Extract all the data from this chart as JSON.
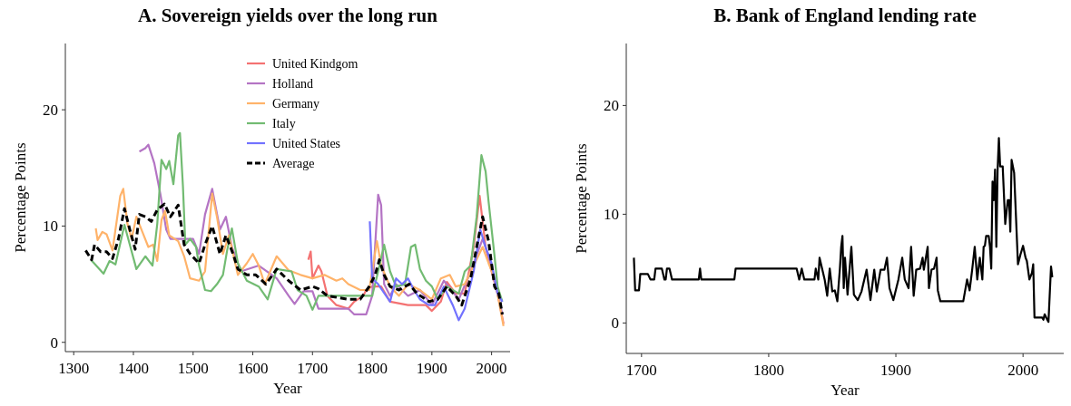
{
  "chart_data": [
    {
      "type": "line",
      "title": "A. Sovereign yields over the long run",
      "xlabel": "Year",
      "ylabel": "Percentage Points",
      "xlim": [
        1286,
        2031
      ],
      "ylim": [
        -0.8,
        25.7
      ],
      "xticks": [
        1300,
        1400,
        1500,
        1600,
        1700,
        1800,
        1900,
        2000
      ],
      "yticks": [
        0,
        10,
        20
      ],
      "legend": "top",
      "series": [
        {
          "name": "United Kindgom",
          "color": "#f47272",
          "x": [
            1693,
            1697,
            1700,
            1710,
            1715,
            1725,
            1740,
            1760,
            1770,
            1785,
            1790,
            1800,
            1815,
            1830,
            1860,
            1890,
            1900,
            1915,
            1925,
            1940,
            1955,
            1970,
            1980,
            1990,
            2000,
            2010,
            2020
          ],
          "values": [
            7.1,
            7.8,
            5.5,
            6.6,
            6.1,
            4.0,
            3.2,
            2.9,
            3.5,
            4.0,
            4.5,
            4.8,
            4.8,
            3.5,
            3.2,
            3.2,
            2.7,
            3.5,
            5.2,
            4.2,
            4.2,
            8.2,
            12.6,
            8.2,
            6.1,
            4.2,
            1.6
          ]
        },
        {
          "name": "Holland",
          "color": "#b474c4",
          "x": [
            1410,
            1420,
            1425,
            1435,
            1445,
            1455,
            1462,
            1490,
            1500,
            1510,
            1520,
            1532,
            1545,
            1555,
            1565,
            1580,
            1610,
            1640,
            1660,
            1670,
            1685,
            1700,
            1710,
            1760,
            1770,
            1790,
            1800,
            1810,
            1815,
            1820,
            1830,
            1840,
            1860,
            1880,
            1900,
            1920,
            1945,
            1965,
            1985,
            1995,
            2010,
            2018
          ],
          "values": [
            16.4,
            16.7,
            17.0,
            15.4,
            12.8,
            9.7,
            8.9,
            8.9,
            8.9,
            7.6,
            11.0,
            13.2,
            9.7,
            10.8,
            8.2,
            6.1,
            6.6,
            5.5,
            4.0,
            3.3,
            4.4,
            4.4,
            2.9,
            2.9,
            2.4,
            2.4,
            4.0,
            12.7,
            11.8,
            5.0,
            4.0,
            5.0,
            4.0,
            4.5,
            3.2,
            5.3,
            3.7,
            6.1,
            8.9,
            7.4,
            4.2,
            2.4
          ]
        },
        {
          "name": "Germany",
          "color": "#ffb36a",
          "x": [
            1337,
            1340,
            1348,
            1355,
            1365,
            1378,
            1383,
            1390,
            1397,
            1405,
            1415,
            1425,
            1433,
            1440,
            1447,
            1453,
            1460,
            1475,
            1485,
            1495,
            1510,
            1520,
            1532,
            1540,
            1550,
            1560,
            1575,
            1590,
            1600,
            1610,
            1620,
            1640,
            1660,
            1680,
            1700,
            1720,
            1740,
            1750,
            1760,
            1780,
            1795,
            1808,
            1815,
            1830,
            1845,
            1860,
            1880,
            1900,
            1915,
            1930,
            1940,
            1955,
            1970,
            1985,
            1995,
            2005,
            2020
          ],
          "values": [
            9.8,
            8.8,
            9.5,
            9.3,
            7.9,
            12.6,
            13.2,
            10.2,
            8.9,
            10.8,
            9.5,
            8.2,
            8.4,
            7.0,
            10.5,
            11.3,
            9.2,
            8.7,
            7.4,
            5.5,
            5.3,
            6.1,
            12.8,
            10.8,
            7.6,
            9.2,
            5.8,
            6.8,
            7.6,
            6.6,
            5.0,
            7.4,
            6.2,
            5.8,
            5.5,
            5.8,
            5.3,
            5.5,
            5.0,
            4.5,
            4.5,
            8.7,
            6.6,
            4.8,
            4.0,
            5.0,
            4.5,
            3.7,
            5.5,
            5.8,
            4.8,
            5.0,
            6.6,
            8.2,
            6.8,
            5.5,
            1.4
          ]
        },
        {
          "name": "Italy",
          "color": "#72bb72",
          "x": [
            1329,
            1350,
            1360,
            1370,
            1385,
            1395,
            1405,
            1420,
            1432,
            1440,
            1447,
            1455,
            1460,
            1467,
            1475,
            1478,
            1483,
            1487,
            1495,
            1505,
            1510,
            1520,
            1530,
            1540,
            1550,
            1557,
            1565,
            1575,
            1590,
            1610,
            1625,
            1640,
            1665,
            1675,
            1690,
            1700,
            1710,
            1800,
            1810,
            1820,
            1830,
            1840,
            1855,
            1865,
            1872,
            1880,
            1890,
            1900,
            1910,
            1925,
            1945,
            1955,
            1965,
            1975,
            1983,
            1990,
            1995,
            2005,
            2010,
            2018
          ],
          "values": [
            7.1,
            5.9,
            7.0,
            6.7,
            10.1,
            8.2,
            6.3,
            7.4,
            6.6,
            10.2,
            15.7,
            14.9,
            15.6,
            13.6,
            17.8,
            18.0,
            13.4,
            8.4,
            8.9,
            8.2,
            6.6,
            4.5,
            4.4,
            5.0,
            5.8,
            7.9,
            9.8,
            6.8,
            5.3,
            4.8,
            3.7,
            6.3,
            6.1,
            4.5,
            4.0,
            2.8,
            4.0,
            4.0,
            6.1,
            8.4,
            6.1,
            4.8,
            5.0,
            8.2,
            8.4,
            6.3,
            5.3,
            4.8,
            3.7,
            4.8,
            4.2,
            6.1,
            6.6,
            10.8,
            16.1,
            14.7,
            12.1,
            7.4,
            4.8,
            3.5
          ]
        },
        {
          "name": "United States",
          "color": "#7272ff",
          "x": [
            1796,
            1800,
            1810,
            1830,
            1840,
            1850,
            1860,
            1870,
            1880,
            1895,
            1905,
            1920,
            1935,
            1945,
            1955,
            1970,
            1981,
            1990,
            2000,
            2010,
            2018
          ],
          "values": [
            10.4,
            5.5,
            5.0,
            3.5,
            5.5,
            5.0,
            5.5,
            4.5,
            3.7,
            3.2,
            3.2,
            4.8,
            3.2,
            1.9,
            2.9,
            6.1,
            9.7,
            8.2,
            6.8,
            4.2,
            3.5
          ]
        },
        {
          "name": "Average",
          "color": "#000000",
          "line_style": "dashed",
          "x": [
            1320,
            1330,
            1335,
            1345,
            1355,
            1365,
            1375,
            1385,
            1395,
            1403,
            1410,
            1420,
            1430,
            1440,
            1452,
            1462,
            1475,
            1485,
            1495,
            1510,
            1520,
            1532,
            1545,
            1555,
            1567,
            1575,
            1590,
            1605,
            1622,
            1640,
            1660,
            1680,
            1700,
            1710,
            1725,
            1760,
            1780,
            1795,
            1805,
            1812,
            1820,
            1830,
            1845,
            1862,
            1875,
            1895,
            1910,
            1925,
            1940,
            1950,
            1965,
            1975,
            1985,
            1995,
            2005,
            2012,
            2018
          ],
          "values": [
            7.9,
            7.1,
            8.4,
            7.8,
            7.8,
            7.2,
            8.9,
            11.5,
            9.5,
            8.0,
            11.0,
            10.8,
            10.4,
            11.4,
            11.9,
            10.8,
            11.8,
            8.4,
            7.6,
            6.8,
            8.4,
            10.0,
            7.6,
            9.2,
            7.6,
            6.3,
            5.8,
            5.8,
            5.0,
            6.3,
            5.3,
            4.5,
            4.8,
            4.6,
            4.0,
            3.7,
            3.7,
            4.8,
            5.8,
            7.1,
            5.8,
            4.8,
            4.5,
            5.0,
            4.2,
            3.5,
            3.7,
            4.8,
            4.0,
            3.2,
            5.5,
            8.2,
            10.8,
            8.7,
            4.8,
            4.2,
            2.4
          ]
        }
      ]
    },
    {
      "type": "line",
      "title": "B. Bank of England lending rate",
      "xlabel": "Year",
      "ylabel": "Percentage Points",
      "xlim": [
        1688,
        2032
      ],
      "ylim": [
        -2.8,
        25.7
      ],
      "xticks": [
        1700,
        1800,
        1900,
        2000
      ],
      "yticks": [
        0,
        10,
        20
      ],
      "color": "#000000",
      "x": [
        1694,
        1695,
        1698,
        1699,
        1705,
        1707,
        1710,
        1711,
        1716,
        1718,
        1719,
        1720,
        1722,
        1724,
        1745,
        1746,
        1747,
        1773,
        1774,
        1822,
        1824,
        1826,
        1828,
        1836,
        1837,
        1839,
        1840,
        1842,
        1844,
        1846,
        1848,
        1850,
        1852,
        1854,
        1856,
        1857,
        1858,
        1859,
        1860,
        1862,
        1865,
        1867,
        1870,
        1873,
        1877,
        1880,
        1883,
        1885,
        1888,
        1891,
        1893,
        1895,
        1898,
        1902,
        1905,
        1907,
        1910,
        1912,
        1914,
        1916,
        1919,
        1921,
        1922,
        1925,
        1926,
        1928,
        1930,
        1932,
        1933,
        1935,
        1953,
        1956,
        1958,
        1960,
        1962,
        1964,
        1966,
        1968,
        1969,
        1970,
        1971,
        1973,
        1974,
        1975,
        1976,
        1977,
        1978,
        1979,
        1980,
        1981,
        1982,
        1984,
        1986,
        1988,
        1989,
        1990,
        1991,
        1993,
        1996,
        1998,
        2000,
        2002,
        2003,
        2005,
        2007,
        2008,
        2009,
        2015,
        2016,
        2017,
        2019,
        2020,
        2022,
        2023
      ],
      "values": [
        6,
        3,
        3,
        4.5,
        4.5,
        4,
        4,
        5,
        5,
        4,
        4,
        5,
        5,
        4,
        4,
        5,
        4,
        4,
        5,
        5,
        4,
        5,
        4,
        4,
        5,
        4,
        6,
        5,
        4,
        2.5,
        5,
        2.9,
        3,
        2,
        5,
        7,
        8,
        3.2,
        6,
        2.6,
        7,
        2.6,
        2.1,
        2.9,
        4.9,
        2.1,
        4.9,
        2.9,
        4.9,
        4.9,
        6,
        3.2,
        2.1,
        4,
        6,
        4,
        3.2,
        7,
        2.5,
        4.9,
        5,
        6,
        4.9,
        7,
        3.2,
        4.9,
        5,
        6,
        3,
        2,
        2,
        4,
        3,
        4.9,
        7,
        4,
        6,
        4,
        7,
        7.1,
        8,
        8,
        7,
        5,
        13,
        11.3,
        14.1,
        7,
        14.1,
        17,
        14.4,
        14.4,
        9.1,
        11.3,
        11.3,
        8.4,
        15,
        13.8,
        5.4,
        6.3,
        7.1,
        6,
        5.7,
        4,
        4.6,
        5.4,
        0.5,
        0.5,
        0.3,
        0.8,
        0.3,
        0.1,
        5.2,
        4.2
      ]
    }
  ]
}
